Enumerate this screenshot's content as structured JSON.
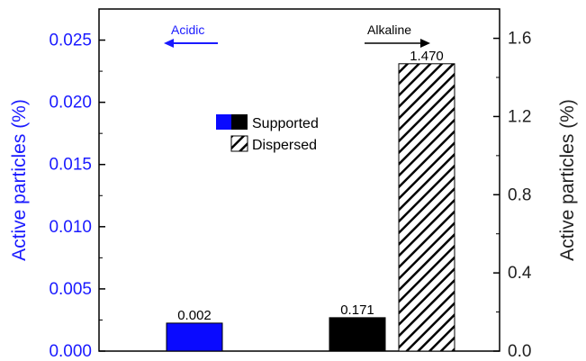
{
  "chart_data": {
    "type": "bar",
    "categories": [
      "Acidic",
      "Alkaline"
    ],
    "series": [
      {
        "name": "Supported",
        "axis": "left",
        "color": "#0a0aff",
        "values": [
          0.00225,
          null
        ]
      },
      {
        "name": "Supported",
        "axis": "right",
        "color": "#000000",
        "values": [
          null,
          0.171
        ]
      },
      {
        "name": "Dispersed",
        "axis": "right",
        "pattern": "hatched",
        "values": [
          null,
          1.47
        ]
      }
    ],
    "data_labels": [
      "0.002",
      "0.171",
      "1.470"
    ],
    "left_axis": {
      "label": "Active particles (%)",
      "color": "#1a1aff",
      "ylim": [
        0,
        0.0275
      ],
      "ticks": [
        0.0,
        0.005,
        0.01,
        0.015,
        0.02,
        0.025
      ],
      "tick_labels": [
        "0.000",
        "0.005",
        "0.010",
        "0.015",
        "0.020",
        "0.025"
      ]
    },
    "right_axis": {
      "label": "Active particles (%)",
      "color": "#222222",
      "ylim": [
        0,
        1.75
      ],
      "ticks": [
        0.0,
        0.4,
        0.8,
        1.2,
        1.6
      ],
      "tick_labels": [
        "0.0",
        "0.4",
        "0.8",
        "1.2",
        "1.6"
      ]
    },
    "annotations": [
      {
        "text": "Acidic",
        "arrow": "left",
        "color": "#1a1aff"
      },
      {
        "text": "Alkaline",
        "arrow": "right",
        "color": "#000000"
      }
    ],
    "legend": {
      "placement": "upper-center",
      "entries": [
        "Supported",
        "Dispersed"
      ]
    }
  }
}
